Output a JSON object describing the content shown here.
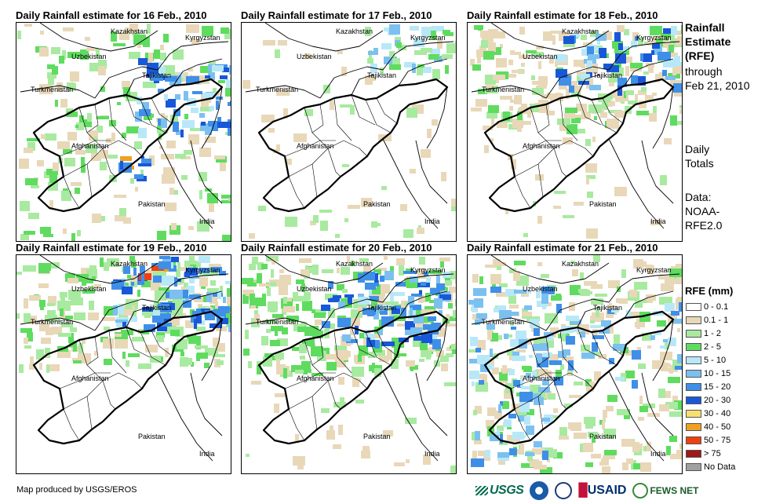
{
  "panels": [
    {
      "title": "Daily Rainfall estimate for 16 Feb., 2010"
    },
    {
      "title": "Daily Rainfall estimate for 17 Feb., 2010"
    },
    {
      "title": "Daily Rainfall estimate for 18 Feb., 2010"
    },
    {
      "title": "Daily Rainfall estimate for 19 Feb., 2010"
    },
    {
      "title": "Daily Rainfall estimate for 20 Feb., 2010"
    },
    {
      "title": "Daily Rainfall estimate for 21 Feb., 2010"
    }
  ],
  "place_labels": {
    "kazakhstan": "Kazakhstan",
    "kyrgyzstan": "Kyrgyzstan",
    "uzbekistan": "Uzbekistan",
    "tajikistan": "Tajikistan",
    "turkmenistan": "Turkmenistan",
    "afghanistan": "Afghanistan",
    "pakistan": "Pakistan",
    "india": "India"
  },
  "side_text": {
    "line1": "Rainfall",
    "line2": "Estimate",
    "line3": "(RFE)",
    "line4": "through",
    "line5": "Feb 21, 2010",
    "daily1": "Daily",
    "daily2": "Totals",
    "data1": "Data:",
    "data2": "NOAA-",
    "data3": "RFE2.0"
  },
  "legend": {
    "title": "RFE (mm)",
    "items": [
      {
        "label": "0 - 0.1",
        "color": "#ffffff"
      },
      {
        "label": "0.1 - 1",
        "color": "#e8d8b8"
      },
      {
        "label": "1 - 2",
        "color": "#a8eaa0"
      },
      {
        "label": "2 - 5",
        "color": "#5fdc5f"
      },
      {
        "label": "5 - 10",
        "color": "#b8e8f8"
      },
      {
        "label": "10 - 15",
        "color": "#7cc0f0"
      },
      {
        "label": "15 - 20",
        "color": "#3f8fe8"
      },
      {
        "label": "20 - 30",
        "color": "#1858d8"
      },
      {
        "label": "30 - 40",
        "color": "#f8e070"
      },
      {
        "label": "40 - 50",
        "color": "#f0a020"
      },
      {
        "label": "50 - 75",
        "color": "#f04010"
      },
      {
        "label": "> 75",
        "color": "#a01818"
      },
      {
        "label": "No Data",
        "color": "#a0a0a0"
      }
    ]
  },
  "credit": "Map produced by USGS/EROS",
  "logos": {
    "usgs": "USGS",
    "usaid": "USAID",
    "fews": "FEWS NET"
  }
}
